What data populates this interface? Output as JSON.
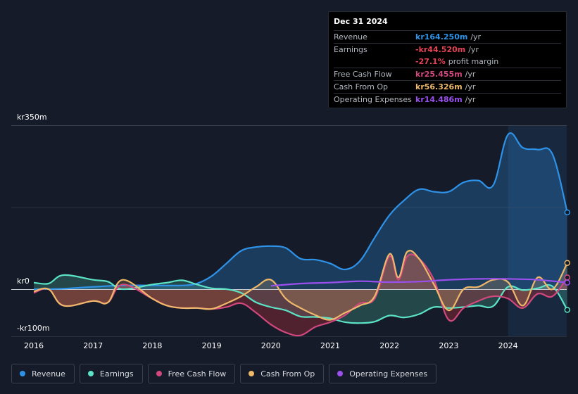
{
  "tooltip": {
    "date": "Dec 31 2024",
    "rows": [
      {
        "name": "Revenue",
        "value": "kr164.250m",
        "unit": "/yr",
        "color": "#2e93e8"
      },
      {
        "name": "Earnings",
        "value": "-kr44.520m",
        "unit": "/yr",
        "color": "#e64255"
      },
      {
        "name": "",
        "value": "-27.1%",
        "unit": "profit margin",
        "color": "#e64255"
      },
      {
        "name": "Free Cash Flow",
        "value": "kr25.455m",
        "unit": "/yr",
        "color": "#d1487d"
      },
      {
        "name": "Cash From Op",
        "value": "kr56.326m",
        "unit": "/yr",
        "color": "#efb86a"
      },
      {
        "name": "Operating Expenses",
        "value": "kr14.486m",
        "unit": "/yr",
        "color": "#9b4fef"
      }
    ]
  },
  "legend": [
    {
      "label": "Revenue",
      "color": "#2e93e8"
    },
    {
      "label": "Earnings",
      "color": "#5ce3c6"
    },
    {
      "label": "Free Cash Flow",
      "color": "#d1487d"
    },
    {
      "label": "Cash From Op",
      "color": "#efb86a"
    },
    {
      "label": "Operating Expenses",
      "color": "#9b4fef"
    }
  ],
  "chart_data": {
    "type": "line",
    "title": "",
    "xlabel": "",
    "ylabel": "",
    "y_labels": {
      "top": "kr350m",
      "zero": "kr0",
      "bottom": "-kr100m"
    },
    "ylim": [
      -100,
      350
    ],
    "xlim": [
      2015.98,
      2025.0
    ],
    "x_ticks": [
      2016,
      2017,
      2018,
      2019,
      2020,
      2021,
      2022,
      2023,
      2024
    ],
    "x_tick_labels": [
      "2016",
      "2017",
      "2018",
      "2019",
      "2020",
      "2021",
      "2022",
      "2023",
      "2024"
    ],
    "highlight_from": 2024.0,
    "series": [
      {
        "name": "Revenue",
        "color": "#2e93e8",
        "x": [
          2016.0,
          2016.5,
          2017.0,
          2017.5,
          2018.0,
          2018.5,
          2018.75,
          2019.0,
          2019.25,
          2019.5,
          2019.75,
          2020.0,
          2020.25,
          2020.5,
          2020.75,
          2021.0,
          2021.25,
          2021.5,
          2021.75,
          2022.0,
          2022.25,
          2022.5,
          2022.75,
          2023.0,
          2023.25,
          2023.5,
          2023.75,
          2024.0,
          2024.25,
          2024.5,
          2024.75,
          2025.0
        ],
        "values": [
          0,
          1,
          5,
          8,
          8,
          8,
          12,
          28,
          55,
          82,
          90,
          92,
          88,
          65,
          63,
          55,
          42,
          60,
          110,
          158,
          190,
          213,
          208,
          208,
          228,
          232,
          222,
          330,
          302,
          298,
          288,
          164
        ]
      },
      {
        "name": "Earnings",
        "color": "#5ce3c6",
        "x": [
          2016.0,
          2016.25,
          2016.5,
          2017.0,
          2017.25,
          2017.5,
          2018.0,
          2018.25,
          2018.5,
          2018.75,
          2019.0,
          2019.25,
          2019.5,
          2019.75,
          2020.0,
          2020.25,
          2020.5,
          2020.75,
          2021.0,
          2021.25,
          2021.5,
          2021.75,
          2022.0,
          2022.25,
          2022.5,
          2022.75,
          2023.0,
          2023.25,
          2023.5,
          2023.75,
          2024.0,
          2024.25,
          2024.5,
          2024.75,
          2025.0
        ],
        "values": [
          14,
          12,
          30,
          20,
          16,
          0,
          10,
          14,
          19,
          10,
          2,
          0,
          -8,
          -28,
          -38,
          -45,
          -58,
          -59,
          -62,
          -70,
          -72,
          -69,
          -56,
          -60,
          -53,
          -38,
          -40,
          -38,
          -35,
          -36,
          5,
          -2,
          2,
          6,
          -44
        ]
      },
      {
        "name": "Free Cash Flow",
        "color": "#d1487d",
        "x": [
          2016.0,
          2016.25,
          2016.5,
          2017.0,
          2017.25,
          2017.5,
          2018.0,
          2018.25,
          2018.5,
          2018.75,
          2019.0,
          2019.25,
          2019.5,
          2019.75,
          2020.0,
          2020.25,
          2020.5,
          2020.75,
          2021.0,
          2021.25,
          2021.5,
          2021.75,
          2022.0,
          2022.15,
          2022.3,
          2022.5,
          2022.75,
          2023.0,
          2023.25,
          2023.5,
          2023.75,
          2024.0,
          2024.25,
          2024.5,
          2024.75,
          2025.0
        ],
        "values": [
          -8,
          0,
          -35,
          -25,
          -28,
          10,
          -20,
          -35,
          -40,
          -40,
          -42,
          -38,
          -30,
          -50,
          -75,
          -92,
          -98,
          -80,
          -70,
          -55,
          -30,
          -20,
          70,
          20,
          70,
          65,
          20,
          -65,
          -40,
          -25,
          -15,
          -20,
          -40,
          -10,
          -15,
          25
        ]
      },
      {
        "name": "Cash From Op",
        "color": "#efb86a",
        "x": [
          2016.0,
          2016.25,
          2016.5,
          2017.0,
          2017.25,
          2017.5,
          2018.0,
          2018.25,
          2018.5,
          2018.75,
          2019.0,
          2019.25,
          2019.5,
          2019.75,
          2020.0,
          2020.25,
          2020.5,
          2020.75,
          2021.0,
          2021.25,
          2021.5,
          2021.75,
          2022.0,
          2022.15,
          2022.3,
          2022.5,
          2022.75,
          2023.0,
          2023.25,
          2023.5,
          2023.75,
          2024.0,
          2024.25,
          2024.5,
          2024.75,
          2025.0
        ],
        "values": [
          -5,
          0,
          -35,
          -25,
          -28,
          20,
          -20,
          -35,
          -40,
          -40,
          -42,
          -30,
          -15,
          5,
          20,
          -20,
          -40,
          -55,
          -65,
          -50,
          -35,
          -15,
          75,
          25,
          80,
          65,
          10,
          -45,
          0,
          5,
          20,
          15,
          -35,
          25,
          0,
          56
        ]
      },
      {
        "name": "Operating Expenses",
        "color": "#9b4fef",
        "x": [
          2020.0,
          2020.5,
          2021.0,
          2021.5,
          2022.0,
          2022.5,
          2023.0,
          2023.5,
          2024.0,
          2024.5,
          2025.0
        ],
        "values": [
          7,
          12,
          14,
          17,
          15,
          16,
          20,
          22,
          22,
          20,
          14
        ]
      }
    ]
  }
}
